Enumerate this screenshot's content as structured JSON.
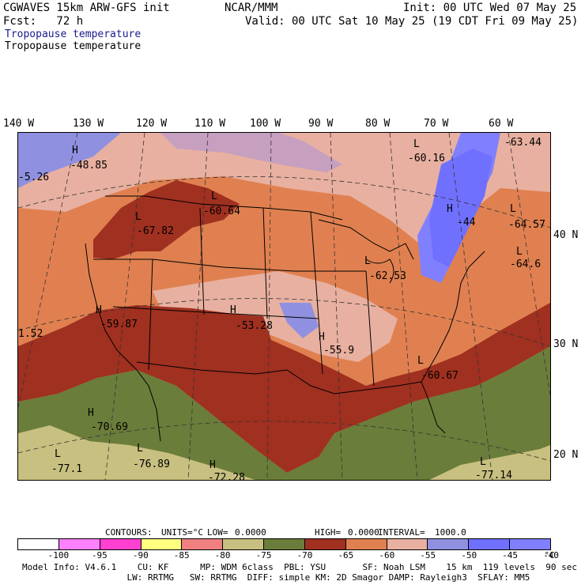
{
  "header": {
    "model": "CGWAVES 15km ARW-GFS init",
    "org": "NCAR/MMM",
    "init": "Init: 00 UTC Wed 07 May 25",
    "fcst": "Fcst:   72 h",
    "valid": "Valid: 00 UTC Sat 10 May 25 (19 CDT Fri 09 May 25)",
    "field1": "Tropopause temperature",
    "field2": "Tropopause temperature"
  },
  "map": {
    "longitude_labels": [
      "140 W",
      "130 W",
      "120 W",
      "110 W",
      "100 W",
      "90 W",
      "80 W",
      "70 W",
      "60 W"
    ],
    "latitude_labels": [
      "40 N",
      "30 N",
      "20 N"
    ],
    "extrema": [
      {
        "type": "H",
        "value": "-48.85"
      },
      {
        "type": "",
        "value": "-5.26"
      },
      {
        "type": "L",
        "value": "-60.16"
      },
      {
        "type": "",
        "value": "-63.44"
      },
      {
        "type": "L",
        "value": "-60.64"
      },
      {
        "type": "L",
        "value": "-67.82"
      },
      {
        "type": "H",
        "value": "-44"
      },
      {
        "type": "L",
        "value": "-64.57"
      },
      {
        "type": "L",
        "value": "-64.6"
      },
      {
        "type": "L",
        "value": "-62.53"
      },
      {
        "type": "H",
        "value": "-59.87"
      },
      {
        "type": "",
        "value": "1.52"
      },
      {
        "type": "H",
        "value": "-53.28"
      },
      {
        "type": "H",
        "value": "-55.9"
      },
      {
        "type": "L",
        "value": "-60.67"
      },
      {
        "type": "H",
        "value": "-70.69"
      },
      {
        "type": "L",
        "value": "-77.1"
      },
      {
        "type": "L",
        "value": "-76.89"
      },
      {
        "type": "H",
        "value": "-72.28"
      },
      {
        "type": "L",
        "value": "-77.14"
      }
    ]
  },
  "contours": {
    "label": "CONTOURS:",
    "units": "UNITS=°C",
    "low_label": "LOW=",
    "low": "0.0000",
    "high_label": "HIGH=",
    "high": "0.0000",
    "interval_label": "INTERVAL=",
    "interval": "1000.0"
  },
  "colorbar": {
    "colors": [
      "#ffffff",
      "#ff80ff",
      "#ff40d0",
      "#ffff80",
      "#f08080",
      "#c8c080",
      "#6b7d3a",
      "#a03020",
      "#e08050",
      "#e8b0a0",
      "#9090e0",
      "#7070ff",
      "#8080ff"
    ],
    "labels": [
      "-100",
      "-95",
      "-90",
      "-85",
      "-80",
      "-75",
      "-70",
      "-65",
      "-60",
      "-55",
      "-50",
      "-45",
      "-40"
    ],
    "unit": "°C"
  },
  "footer": {
    "line1": "Model Info: V4.6.1    CU: KF      MP: WDM 6class  PBL: YSU       SF: Noah LSM    15 km  119 levels  90 sec",
    "line2": "                    LW: RRTMG   SW: RRTMG  DIFF: simple KM: 2D Smagor DAMP: Rayleigh3  SFLAY: MM5"
  }
}
